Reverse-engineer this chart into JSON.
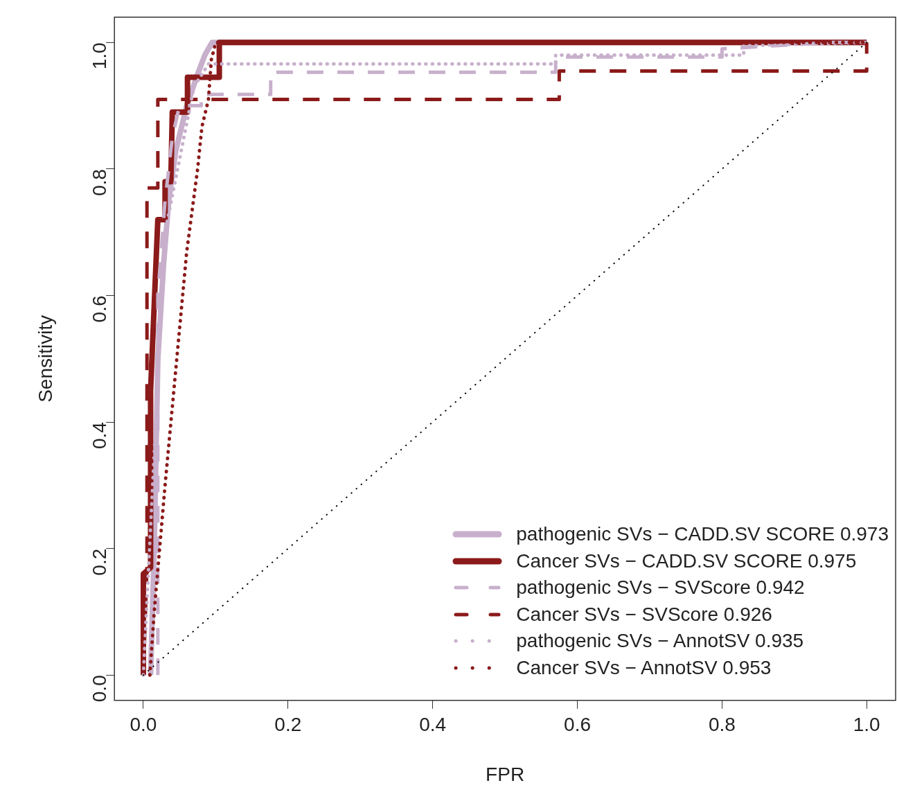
{
  "chart_data": {
    "type": "line",
    "xlabel": "FPR",
    "ylabel": "Sensitivity",
    "xlim": [
      -0.04,
      1.04
    ],
    "ylim": [
      -0.04,
      1.04
    ],
    "xticks": [
      {
        "value": 0,
        "label": "0.0"
      },
      {
        "value": 0.2,
        "label": "0.2"
      },
      {
        "value": 0.4,
        "label": "0.4"
      },
      {
        "value": 0.6,
        "label": "0.6"
      },
      {
        "value": 0.8,
        "label": "0.8"
      },
      {
        "value": 1,
        "label": "1.0"
      }
    ],
    "yticks": [
      {
        "value": 0,
        "label": "0.0"
      },
      {
        "value": 0.2,
        "label": "0.2"
      },
      {
        "value": 0.4,
        "label": "0.4"
      },
      {
        "value": 0.6,
        "label": "0.6"
      },
      {
        "value": 0.8,
        "label": "0.8"
      },
      {
        "value": 1,
        "label": "1.0"
      }
    ],
    "legend": "bottom right",
    "series": [
      {
        "name": "pathogenic SVs − CADD.SV SCORE 0.973",
        "color": "#c8b0cc",
        "line_style": "solid",
        "x": [
          0.01,
          0.015,
          0.02,
          0.028,
          0.035,
          0.045,
          0.06,
          0.075,
          0.085,
          0.095,
          1
        ],
        "values": [
          0,
          0.2,
          0.5,
          0.65,
          0.75,
          0.83,
          0.9,
          0.95,
          0.98,
          1,
          1
        ]
      },
      {
        "name": "Cancer SVs − CADD.SV SCORE 0.975",
        "color": "#8b1a1a",
        "line_style": "solid",
        "x": [
          0,
          0,
          0.01,
          0.01,
          0.02,
          0.03,
          0.03,
          0.038,
          0.04,
          0.061,
          0.061,
          0.105,
          0.105,
          1
        ],
        "values": [
          0,
          0.16,
          0.17,
          0.45,
          0.72,
          0.72,
          0.78,
          0.78,
          0.89,
          0.89,
          0.945,
          0.945,
          1,
          1
        ]
      },
      {
        "name": "pathogenic SVs − SVScore 0.942",
        "color": "#c8b0cc",
        "line_style": "dashed",
        "x": [
          0.02,
          0.02,
          0.03,
          0.04,
          0.05,
          0.08,
          0.08,
          0.176,
          0.176,
          0.57,
          0.57,
          0.8,
          0.8,
          0.95,
          1
        ],
        "values": [
          0,
          0.6,
          0.75,
          0.85,
          0.9,
          0.9,
          0.918,
          0.918,
          0.953,
          0.953,
          0.977,
          0.977,
          0.99,
          1,
          1
        ]
      },
      {
        "name": "Cancer SVs − SVScore 0.926",
        "color": "#8b1a1a",
        "line_style": "dashed",
        "x": [
          0,
          0.005,
          0.005,
          0.02,
          0.02,
          0.575,
          0.575,
          1,
          1
        ],
        "values": [
          0,
          0.17,
          0.77,
          0.77,
          0.91,
          0.91,
          0.955,
          0.955,
          1
        ]
      },
      {
        "name": "pathogenic SVs − AnnotSV 0.935",
        "color": "#c8b0cc",
        "line_style": "dotted",
        "x": [
          0,
          0.03,
          0.07,
          0.09,
          0.57,
          0.57,
          0.83,
          0.83,
          1
        ],
        "values": [
          0,
          0.7,
          0.93,
          0.966,
          0.966,
          0.98,
          0.98,
          0.995,
          1
        ]
      },
      {
        "name": "Cancer SVs − AnnotSV 0.953",
        "color": "#8b1a1a",
        "line_style": "dotted",
        "x": [
          0.009,
          0.015,
          0.03,
          0.045,
          0.06,
          0.075,
          0.081,
          0.09,
          0.094,
          0.1,
          1
        ],
        "values": [
          0,
          0.1,
          0.3,
          0.485,
          0.67,
          0.8,
          0.867,
          0.91,
          0.973,
          1,
          1
        ]
      },
      {
        "color": "#000000",
        "line_style": "dotted",
        "x": [
          0,
          1
        ],
        "values": [
          0,
          1
        ]
      }
    ]
  }
}
